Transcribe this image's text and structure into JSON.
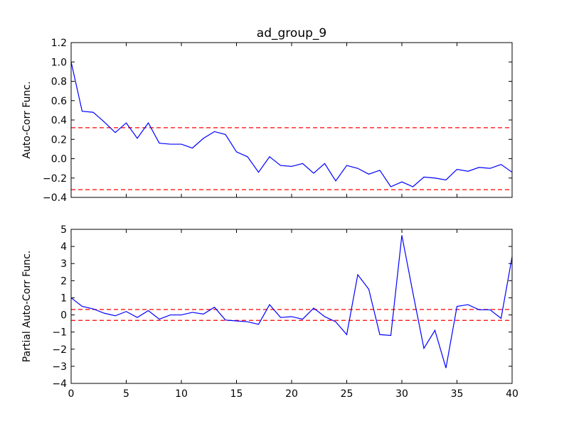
{
  "chart_data": [
    {
      "type": "line",
      "title": "ad_group_9",
      "xlabel": "",
      "ylabel": "Auto-Corr Func.",
      "xlim": [
        0,
        40
      ],
      "ylim": [
        -0.4,
        1.2
      ],
      "xticks": [
        "0",
        "5",
        "10",
        "15",
        "20",
        "25",
        "30",
        "35",
        "40"
      ],
      "yticks": [
        "−0.4",
        "−0.2",
        "0.0",
        "0.2",
        "0.4",
        "0.6",
        "0.8",
        "1.0",
        "1.2"
      ],
      "show_xtick_labels": false,
      "grid": false,
      "line_color": "#0000ff",
      "x": [
        0,
        1,
        2,
        3,
        4,
        5,
        6,
        7,
        8,
        9,
        10,
        11,
        12,
        13,
        14,
        15,
        16,
        17,
        18,
        19,
        20,
        21,
        22,
        23,
        24,
        25,
        26,
        27,
        28,
        29,
        30,
        31,
        32,
        33,
        34,
        35,
        36,
        37,
        38,
        39,
        40
      ],
      "values": [
        1.0,
        0.49,
        0.48,
        0.38,
        0.27,
        0.37,
        0.21,
        0.37,
        0.16,
        0.15,
        0.15,
        0.11,
        0.21,
        0.28,
        0.25,
        0.07,
        0.02,
        -0.14,
        0.02,
        -0.07,
        -0.08,
        -0.05,
        -0.15,
        -0.05,
        -0.23,
        -0.07,
        -0.1,
        -0.16,
        -0.12,
        -0.29,
        -0.24,
        -0.29,
        -0.19,
        -0.2,
        -0.22,
        -0.11,
        -0.13,
        -0.09,
        -0.1,
        -0.06,
        -0.14
      ],
      "confidence_band": [
        0.32,
        -0.32
      ],
      "band_color": "#ff0000"
    },
    {
      "type": "line",
      "title": "",
      "xlabel": "",
      "ylabel": "Partial Auto-Corr Func.",
      "xlim": [
        0,
        40
      ],
      "ylim": [
        -4,
        5
      ],
      "xticks": [
        "0",
        "5",
        "10",
        "15",
        "20",
        "25",
        "30",
        "35",
        "40"
      ],
      "yticks": [
        "−4",
        "−3",
        "−2",
        "−1",
        "0",
        "1",
        "2",
        "3",
        "4",
        "5"
      ],
      "show_xtick_labels": true,
      "grid": false,
      "line_color": "#0000ff",
      "x": [
        0,
        1,
        2,
        3,
        4,
        5,
        6,
        7,
        8,
        9,
        10,
        11,
        12,
        13,
        14,
        15,
        16,
        17,
        18,
        19,
        20,
        21,
        22,
        23,
        24,
        25,
        26,
        27,
        28,
        29,
        30,
        31,
        32,
        33,
        34,
        35,
        36,
        37,
        38,
        39,
        40
      ],
      "values": [
        1.0,
        0.5,
        0.35,
        0.1,
        -0.05,
        0.2,
        -0.15,
        0.25,
        -0.25,
        0.0,
        0.0,
        0.15,
        0.05,
        0.45,
        -0.3,
        -0.35,
        -0.4,
        -0.55,
        0.6,
        -0.15,
        -0.1,
        -0.25,
        0.4,
        -0.1,
        -0.4,
        -1.15,
        2.35,
        1.5,
        -1.15,
        -1.2,
        4.65,
        1.3,
        -1.95,
        -0.9,
        -3.1,
        0.5,
        0.6,
        0.3,
        0.3,
        -0.2,
        3.4
      ],
      "confidence_band": [
        0.32,
        -0.32
      ],
      "band_color": "#ff0000"
    }
  ]
}
